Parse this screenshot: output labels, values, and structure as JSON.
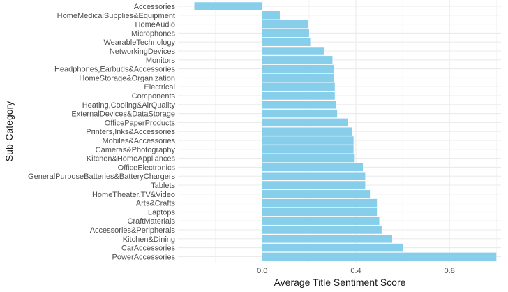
{
  "chart_data": {
    "type": "bar",
    "orientation": "horizontal",
    "title": "",
    "xlabel": "Average Title Sentiment Score",
    "ylabel": "Sub-Category",
    "xlim": [
      -0.36,
      1.02
    ],
    "x_ticks": [
      0.0,
      0.4,
      0.8
    ],
    "x_tick_labels": [
      "0.0",
      "0.4",
      "0.8"
    ],
    "grid": true,
    "legend": "none",
    "bar_color": "#87CEEB",
    "categories": [
      "Accessories",
      "HomeMedicalSupplies&Equipment",
      "HomeAudio",
      "Microphones",
      "WearableTechnology",
      "NetworkingDevices",
      "Monitors",
      "Headphones,Earbuds&Accessories",
      "HomeStorage&Organization",
      "Electrical",
      "Components",
      "Heating,Cooling&AirQuality",
      "ExternalDevices&DataStorage",
      "OfficePaperProducts",
      "Printers,Inks&Accessories",
      "Mobiles&Accessories",
      "Cameras&Photography",
      "Kitchen&HomeAppliances",
      "OfficeElectronics",
      "GeneralPurposeBatteries&BatteryChargers",
      "Tablets",
      "HomeTheater,TV&Video",
      "Arts&Crafts",
      "Laptops",
      "CraftMaterials",
      "Accessories&Peripherals",
      "Kitchen&Dining",
      "CarAccessories",
      "PowerAccessories"
    ],
    "values": [
      -0.29,
      0.075,
      0.195,
      0.2,
      0.205,
      0.265,
      0.3,
      0.305,
      0.305,
      0.31,
      0.31,
      0.315,
      0.32,
      0.365,
      0.385,
      0.39,
      0.39,
      0.395,
      0.43,
      0.44,
      0.44,
      0.46,
      0.49,
      0.49,
      0.5,
      0.51,
      0.555,
      0.6,
      1.0
    ]
  }
}
